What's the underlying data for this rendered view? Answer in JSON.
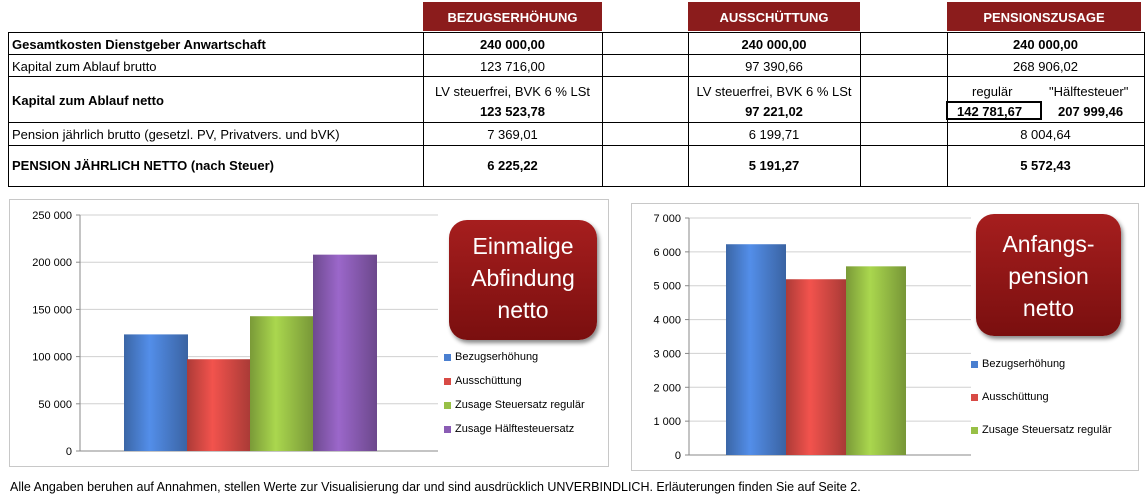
{
  "table": {
    "headers": [
      "BEZUGSERHÖHUNG",
      "AUSSCHÜTTUNG",
      "PENSIONSZUSAGE"
    ],
    "rows": {
      "gesamtkosten": {
        "label": "Gesamtkosten Dienstgeber Anwartschaft",
        "values": [
          "240 000,00",
          "240 000,00",
          "240 000,00"
        ]
      },
      "kapital_brutto": {
        "label": "Kapital zum Ablauf brutto",
        "values": [
          "123 716,00",
          "97 390,66",
          "268 906,02"
        ]
      },
      "kapital_netto": {
        "label": "Kapital zum Ablauf netto",
        "col1_note": "LV steuerfrei, BVK 6 % LSt",
        "col1_value": "123 523,78",
        "col2_note": "LV steuerfrei, BVK 6 % LSt",
        "col2_value": "97 221,02",
        "col3_label_a": "regulär",
        "col3_label_b": "\"Hälftesteuer\"",
        "col3_value_a": "142 781,67",
        "col3_value_b": "207 999,46"
      },
      "pension_brutto": {
        "label": "Pension jährlich brutto (gesetzl. PV, Privatvers. und bVK)",
        "values": [
          "7 369,01",
          "6 199,71",
          "8 004,64"
        ]
      },
      "pension_netto": {
        "label": "PENSION JÄHRLICH NETTO (nach Steuer)",
        "values": [
          "6 225,22",
          "5 191,27",
          "5 572,43"
        ]
      }
    }
  },
  "callouts": {
    "left": [
      "Einmalige",
      "Abfindung",
      "netto"
    ],
    "right": [
      "Anfangs-",
      "pension",
      "netto"
    ]
  },
  "footnote": "Alle Angaben beruhen auf Annahmen, stellen Werte zur Visualisierung dar und sind ausdrücklich UNVERBINDLICH. Erläuterungen finden Sie auf Seite 2.",
  "chart_data": [
    {
      "type": "bar",
      "categories": [
        "Bezugserhöhung",
        "Ausschüttung",
        "Zusage Steuersatz regulär",
        "Zusage Hälftesteuersatz"
      ],
      "values": [
        123523.78,
        97221.02,
        142781.67,
        207999.46
      ],
      "colors": [
        "#4a7fd0",
        "#d84a45",
        "#98c046",
        "#8a5cb4"
      ],
      "ylim": [
        0,
        250000
      ],
      "yticks": [
        "0",
        "50 000",
        "100 000",
        "150 000",
        "200 000",
        "250 000"
      ],
      "legend_position": "right",
      "grid": true
    },
    {
      "type": "bar",
      "categories": [
        "Bezugserhöhung",
        "Ausschüttung",
        "Zusage Steuersatz regulär"
      ],
      "values": [
        6225.22,
        5191.27,
        5572.43
      ],
      "colors": [
        "#4a7fd0",
        "#d84a45",
        "#98c046"
      ],
      "ylim": [
        0,
        7000
      ],
      "yticks": [
        "0",
        "1 000",
        "2 000",
        "3 000",
        "4 000",
        "5 000",
        "6 000",
        "7 000"
      ],
      "legend_position": "right",
      "grid": true
    }
  ]
}
